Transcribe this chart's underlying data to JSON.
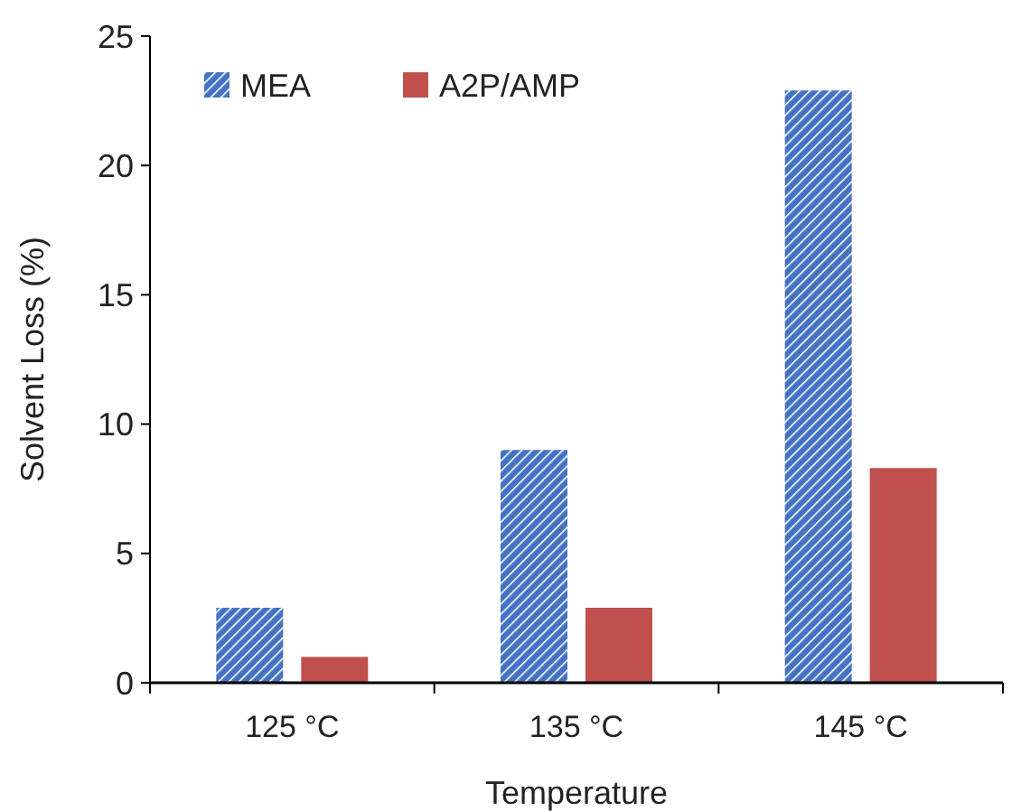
{
  "chart_data": {
    "type": "bar",
    "xlabel": "Temperature",
    "ylabel": "Solvent Loss (%)",
    "categories": [
      "125 °C",
      "135 °C",
      "145 °C"
    ],
    "series": [
      {
        "name": "MEA",
        "color": "#4472c4",
        "values": [
          2.9,
          9.0,
          22.9
        ]
      },
      {
        "name": "A2P/AMP",
        "color": "#c0504d",
        "values": [
          1.0,
          2.9,
          8.3
        ]
      }
    ],
    "ylim": [
      0,
      25
    ],
    "yticks": [
      0,
      5,
      10,
      15,
      20,
      25
    ],
    "legend": "top left"
  }
}
